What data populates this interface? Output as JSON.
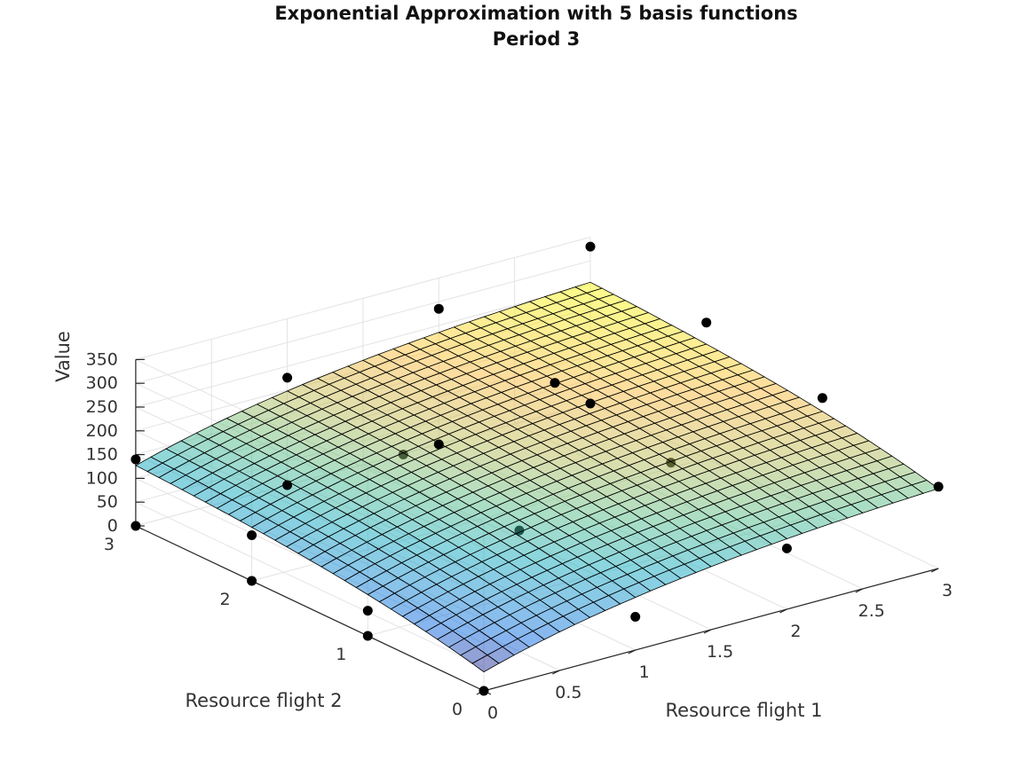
{
  "chart_data": {
    "type": "surface3d",
    "title": "Exponential Approximation with 5 basis functions",
    "subtitle": "Period 3",
    "xlabel": "Resource flight 1",
    "ylabel": "Resource flight 2",
    "zlabel": "Value",
    "xlim": [
      0,
      3
    ],
    "ylim": [
      0,
      3
    ],
    "zlim": [
      0,
      350
    ],
    "xticks": [
      "0",
      "0.5",
      "1",
      "1.5",
      "2",
      "2.5",
      "3"
    ],
    "yticks": [
      "0",
      "1",
      "2",
      "3"
    ],
    "zticks": [
      "0",
      "50",
      "100",
      "150",
      "200",
      "250",
      "300",
      "350"
    ],
    "grid": true,
    "colormap": "parula (semi-transparent)",
    "surface_grid_resolution": 31,
    "surface_model": {
      "form": "a*(1-exp(-b*x1)) + c*(1-exp(-d*x2)) + e",
      "a": 150,
      "b": 0.64,
      "c": 105,
      "d": 0.59,
      "e": 40
    },
    "scatter_points": [
      {
        "x1": 0,
        "x2": 0,
        "value": 0
      },
      {
        "x1": 1,
        "x2": 0,
        "value": 70
      },
      {
        "x1": 2,
        "x2": 0,
        "value": 128
      },
      {
        "x1": 3,
        "x2": 0,
        "value": 172
      },
      {
        "x1": 0,
        "x2": 1,
        "value": 53
      },
      {
        "x1": 1,
        "x2": 1,
        "value": 136
      },
      {
        "x1": 2,
        "x2": 1,
        "value": 193
      },
      {
        "x1": 3,
        "x2": 1,
        "value": 243
      },
      {
        "x1": 0,
        "x2": 2,
        "value": 96
      },
      {
        "x1": 1,
        "x2": 2,
        "value": 180
      },
      {
        "x1": 2,
        "x2": 2,
        "value": 245
      },
      {
        "x1": 3,
        "x2": 2,
        "value": 286
      },
      {
        "x1": 0,
        "x2": 3,
        "value": 140
      },
      {
        "x1": 1,
        "x2": 3,
        "value": 226
      },
      {
        "x1": 2,
        "x2": 3,
        "value": 285
      },
      {
        "x1": 3,
        "x2": 3,
        "value": 330
      }
    ],
    "extra_points": [
      {
        "x1": 0,
        "x2": 3,
        "value": 0
      },
      {
        "x1": 0,
        "x2": 2,
        "value": 0
      },
      {
        "x1": 0,
        "x2": 1,
        "value": 0
      },
      {
        "x1": 3,
        "x2": 3,
        "value": 0
      },
      {
        "x1": 2,
        "x2": 3,
        "value": 0
      },
      {
        "x1": 1,
        "x2": 3,
        "value": 0
      }
    ]
  }
}
